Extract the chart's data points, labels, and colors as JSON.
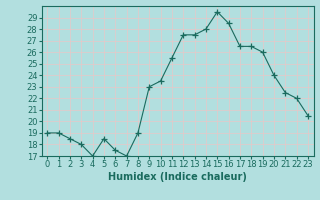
{
  "x": [
    0,
    1,
    2,
    3,
    4,
    5,
    6,
    7,
    8,
    9,
    10,
    11,
    12,
    13,
    14,
    15,
    16,
    17,
    18,
    19,
    20,
    21,
    22,
    23
  ],
  "y": [
    19,
    19,
    18.5,
    18,
    17,
    18.5,
    17.5,
    17,
    19,
    23,
    23.5,
    25.5,
    27.5,
    27.5,
    28,
    29.5,
    28.5,
    26.5,
    26.5,
    26,
    24,
    22.5,
    22,
    20.5
  ],
  "line_color": "#1a6b5e",
  "marker": "+",
  "marker_size": 4,
  "bg_color": "#b2dfdf",
  "grid_color": "#d0eeee",
  "xlabel": "Humidex (Indice chaleur)",
  "xlabel_fontsize": 7,
  "tick_fontsize": 6,
  "ylim": [
    17,
    30
  ],
  "xlim": [
    -0.5,
    23.5
  ],
  "yticks": [
    17,
    18,
    19,
    20,
    21,
    22,
    23,
    24,
    25,
    26,
    27,
    28,
    29
  ],
  "xticks": [
    0,
    1,
    2,
    3,
    4,
    5,
    6,
    7,
    8,
    9,
    10,
    11,
    12,
    13,
    14,
    15,
    16,
    17,
    18,
    19,
    20,
    21,
    22,
    23
  ]
}
